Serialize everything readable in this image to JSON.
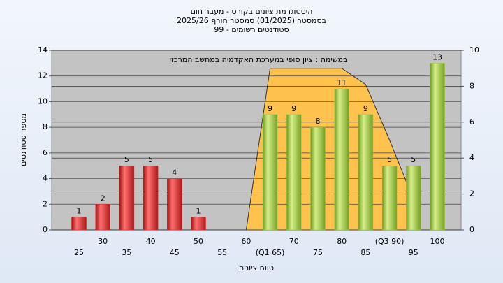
{
  "chart_data": {
    "type": "bar",
    "title": "היסטוגרמת ציונים בקורס - מעבר חום",
    "subtitle": "בסמסטר  (01/2025)  סמסטר חורף 2025/26",
    "subtitle2": "סטודנטים רשומים - 99",
    "annotation": "במשימה : ציון סופי במערכת האקדמיה במחשב המרכזי",
    "y_label": "מספר סטודנטים",
    "x_label": "טווח ציונים",
    "categories": [
      "25",
      "30",
      "35",
      "40",
      "45",
      "50",
      "55",
      "60",
      "(Q1 65)",
      "70",
      "75",
      "80",
      "85",
      "(Q3 90)",
      "95",
      "100"
    ],
    "values": [
      1,
      2,
      5,
      5,
      4,
      1,
      0,
      0,
      9,
      9,
      8,
      11,
      9,
      5,
      5,
      13
    ],
    "colors": [
      "#e02828",
      "#e02828",
      "#e02828",
      "#e02828",
      "#e02828",
      "#e02828",
      "#e02828",
      "#e02828",
      "#9cc743",
      "#9cc743",
      "#9cc743",
      "#9cc743",
      "#9cc743",
      "#9cc743",
      "#9cc743",
      "#9cc743"
    ],
    "area": {
      "axis": "y2",
      "color": "#ffc34d",
      "values": [
        null,
        null,
        null,
        null,
        null,
        null,
        null,
        0,
        9,
        9,
        9,
        9,
        8.1,
        5,
        1.7,
        null
      ]
    },
    "ylim": [
      0,
      14
    ],
    "yticks": [
      0,
      2,
      4,
      6,
      8,
      10,
      12,
      14
    ],
    "y2lim": [
      0,
      10
    ],
    "y2ticks": [
      0,
      2,
      4,
      6,
      8,
      10
    ],
    "grid": true
  }
}
